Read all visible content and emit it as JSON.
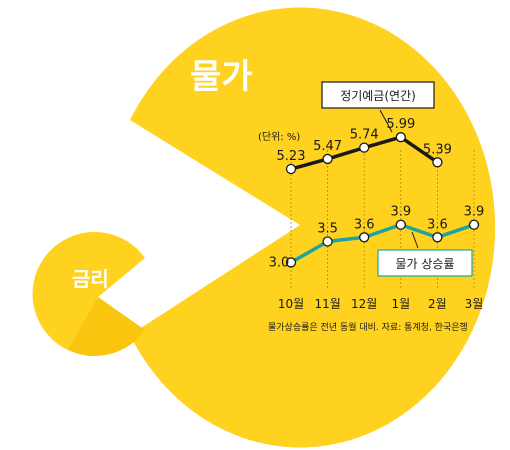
{
  "labels": {
    "big_pac": "물가",
    "small_pac": "금리",
    "unit": "(단위: %)",
    "footnote": "물가상승률은 전년 동월 대비. 자료: 통계청, 한국은행"
  },
  "colors": {
    "yellow": "#FFD21F",
    "yellow_shade": "#F5B800",
    "deposit_line": "#1a1a1a",
    "inflation_line": "#1aa5a0",
    "text": "#1a1a1a"
  },
  "chart_data": {
    "type": "line",
    "categories": [
      "10월",
      "11월",
      "12월",
      "1월",
      "2월",
      "3월"
    ],
    "series": [
      {
        "name": "정기예금(연간)",
        "values": [
          5.23,
          5.47,
          5.74,
          5.99,
          5.39,
          null
        ],
        "labels": [
          "5.23",
          "5.47",
          "5.74",
          "5.99",
          "5.39",
          ""
        ]
      },
      {
        "name": "물가 상승률",
        "values": [
          3.0,
          3.5,
          3.6,
          3.9,
          3.6,
          3.9
        ],
        "labels": [
          "3.0",
          "3.5",
          "3.6",
          "3.9",
          "3.6",
          "3.9"
        ]
      }
    ],
    "xlabel": "",
    "ylabel": "",
    "ylim": [
      2.7,
      6.4
    ],
    "grid": false
  }
}
